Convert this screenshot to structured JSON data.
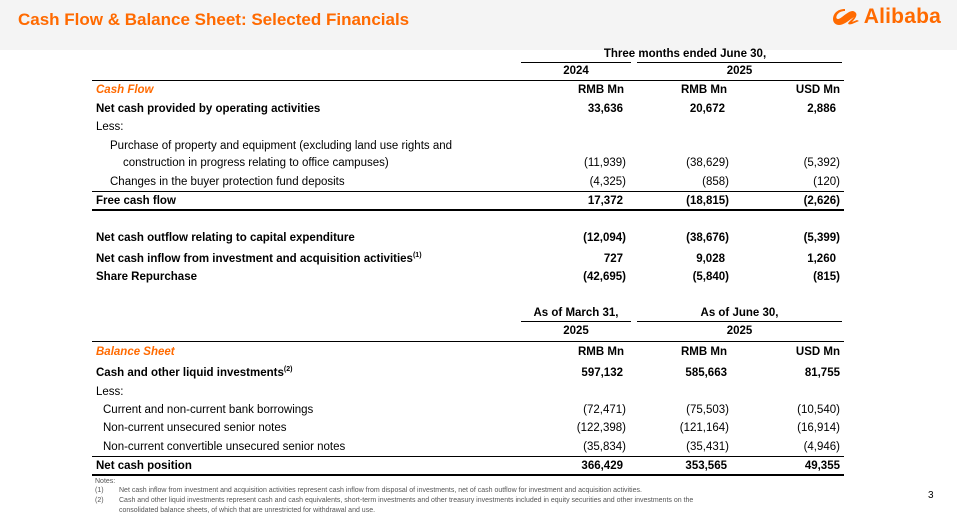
{
  "header": {
    "title": "Cash Flow & Balance Sheet: Selected Financials",
    "brand": "Alibaba",
    "accent_color": "#ff6a00",
    "logo_icon": "alibaba-logo-icon"
  },
  "cash_flow": {
    "period_header": "Three months ended June 30,",
    "years": [
      "2024",
      "2025"
    ],
    "section_label": "Cash Flow",
    "currencies": [
      "RMB Mn",
      "RMB Mn",
      "USD Mn"
    ],
    "rows": [
      {
        "label": "Net cash provided by operating activities",
        "values": [
          "33,636",
          "20,672",
          "2,886"
        ]
      },
      {
        "label": "Less:",
        "values": [
          "",
          "",
          ""
        ]
      },
      {
        "label": "Purchase of property and equipment (excluding land use rights and",
        "values": [
          "",
          "",
          ""
        ]
      },
      {
        "label": "construction in progress relating to office campuses)",
        "values": [
          "(11,939)",
          "(38,629)",
          "(5,392)"
        ]
      },
      {
        "label": "Changes in the buyer protection fund deposits",
        "values": [
          "(4,325)",
          "(858)",
          "(120)"
        ]
      },
      {
        "label": "Free cash flow",
        "values": [
          "17,372",
          "(18,815)",
          "(2,626)"
        ]
      },
      {
        "label": "Net cash outflow relating to capital expenditure",
        "values": [
          "(12,094)",
          "(38,676)",
          "(5,399)"
        ]
      },
      {
        "label": "Net cash inflow from investment and acquisition activities",
        "note": "(1)",
        "values": [
          "727",
          "9,028",
          "1,260"
        ]
      },
      {
        "label": "Share Repurchase",
        "values": [
          "(42,695)",
          "(5,840)",
          "(815)"
        ]
      }
    ]
  },
  "balance_sheet": {
    "left_header": "As of March 31,",
    "left_year": "2025",
    "right_header": "As of June 30,",
    "right_year": "2025",
    "section_label": "Balance Sheet",
    "currencies": [
      "RMB Mn",
      "RMB Mn",
      "USD Mn"
    ],
    "rows": [
      {
        "label": "Cash and other liquid investments",
        "note": "(2)",
        "values": [
          "597,132",
          "585,663",
          "81,755"
        ]
      },
      {
        "label": "Less:",
        "values": [
          "",
          "",
          ""
        ]
      },
      {
        "label": "Current and non-current bank borrowings",
        "values": [
          "(72,471)",
          "(75,503)",
          "(10,540)"
        ]
      },
      {
        "label": "Non-current unsecured senior notes",
        "values": [
          "(122,398)",
          "(121,164)",
          "(16,914)"
        ]
      },
      {
        "label": "Non-current convertible unsecured senior notes",
        "values": [
          "(35,834)",
          "(35,431)",
          "(4,946)"
        ]
      },
      {
        "label": "Net cash position",
        "values": [
          "366,429",
          "353,565",
          "49,355"
        ]
      }
    ]
  },
  "notes": {
    "heading": "Notes:",
    "items": [
      {
        "num": "(1)",
        "text": "Net cash inflow from investment and acquisition activities represent cash inflow from disposal of investments, net of cash outflow for investment and acquisition activities."
      },
      {
        "num": "(2)",
        "text": "Cash and other liquid investments represent cash and cash equivalents, short-term investments and other treasury investments included in equity securities and other investments on the"
      },
      {
        "num": "",
        "text": "consolidated balance sheets, of which that are unrestricted for withdrawal and use."
      }
    ]
  },
  "page_number": "3"
}
